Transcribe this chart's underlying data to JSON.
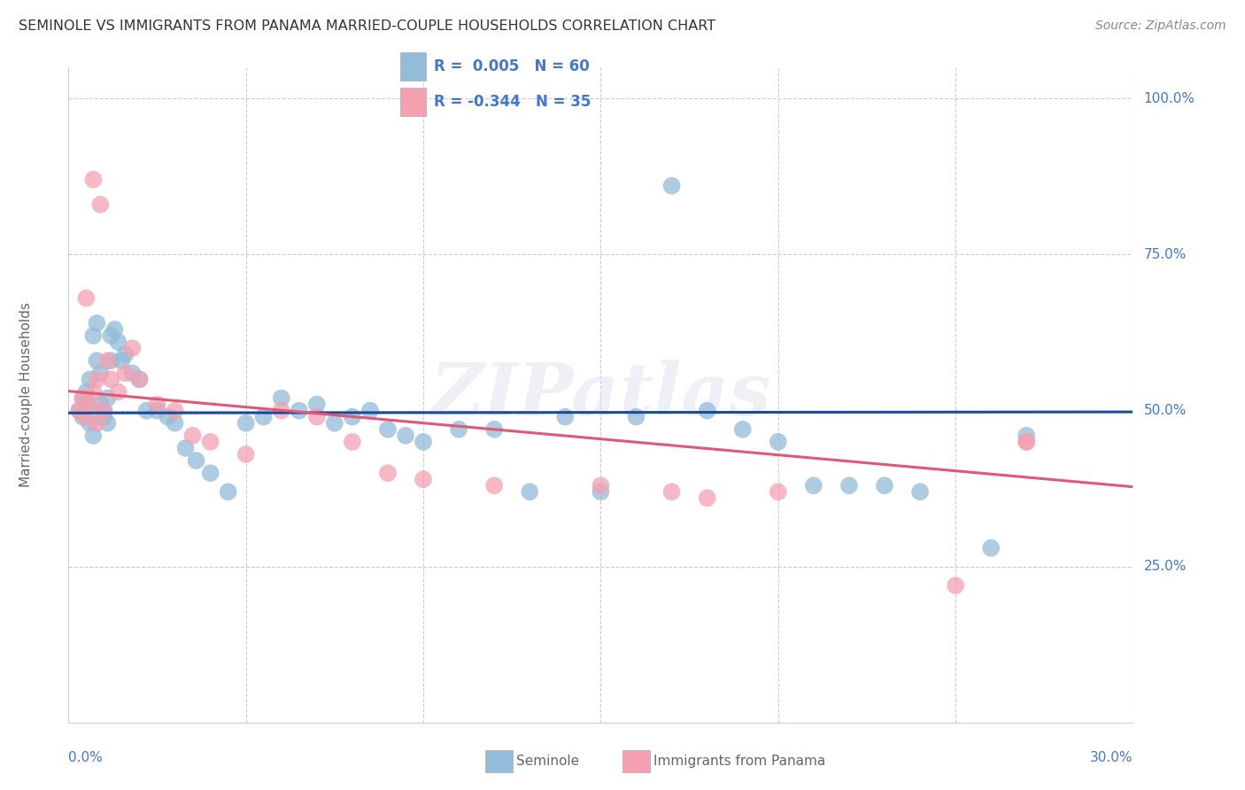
{
  "title": "SEMINOLE VS IMMIGRANTS FROM PANAMA MARRIED-COUPLE HOUSEHOLDS CORRELATION CHART",
  "source": "Source: ZipAtlas.com",
  "ylabel": "Married-couple Households",
  "xmin": 0.0,
  "xmax": 0.3,
  "ymin": 0.0,
  "ymax": 1.05,
  "blue_R": 0.005,
  "blue_N": 60,
  "pink_R": -0.344,
  "pink_N": 35,
  "blue_color": "#92BCD8",
  "pink_color": "#F4A0B0",
  "blue_line_color": "#1A4A9A",
  "pink_line_color": "#E05878",
  "legend_label_blue": "Seminole",
  "legend_label_pink": "Immigrants from Panama",
  "watermark": "ZIPatlas",
  "background_color": "#FFFFFF",
  "grid_color": "#CCCCCC",
  "axis_label_color": "#4477CC",
  "ylabel_color": "#666666",
  "title_color": "#333333",
  "source_color": "#888888",
  "ytick_positions": [
    0.25,
    0.5,
    0.75,
    1.0
  ],
  "ytick_labels": [
    "25.0%",
    "50.0%",
    "75.0%",
    "100.0%"
  ],
  "xtick_positions": [
    0.0,
    0.05,
    0.1,
    0.15,
    0.2,
    0.25,
    0.3
  ],
  "blue_x": [
    0.003,
    0.004,
    0.004,
    0.005,
    0.005,
    0.006,
    0.006,
    0.007,
    0.007,
    0.008,
    0.008,
    0.009,
    0.009,
    0.01,
    0.01,
    0.011,
    0.011,
    0.012,
    0.012,
    0.013,
    0.014,
    0.015,
    0.016,
    0.018,
    0.02,
    0.022,
    0.025,
    0.028,
    0.03,
    0.033,
    0.036,
    0.04,
    0.045,
    0.05,
    0.055,
    0.06,
    0.065,
    0.07,
    0.075,
    0.08,
    0.085,
    0.09,
    0.095,
    0.1,
    0.11,
    0.12,
    0.13,
    0.14,
    0.15,
    0.16,
    0.17,
    0.18,
    0.19,
    0.2,
    0.21,
    0.22,
    0.23,
    0.24,
    0.26,
    0.27
  ],
  "blue_y": [
    0.5,
    0.52,
    0.49,
    0.51,
    0.53,
    0.48,
    0.55,
    0.46,
    0.62,
    0.64,
    0.58,
    0.56,
    0.51,
    0.5,
    0.49,
    0.48,
    0.52,
    0.58,
    0.62,
    0.63,
    0.61,
    0.58,
    0.59,
    0.56,
    0.55,
    0.5,
    0.5,
    0.49,
    0.48,
    0.44,
    0.42,
    0.4,
    0.37,
    0.48,
    0.49,
    0.52,
    0.5,
    0.51,
    0.48,
    0.49,
    0.5,
    0.47,
    0.46,
    0.45,
    0.47,
    0.47,
    0.37,
    0.49,
    0.37,
    0.49,
    0.86,
    0.5,
    0.47,
    0.45,
    0.38,
    0.38,
    0.38,
    0.37,
    0.28,
    0.46
  ],
  "pink_x": [
    0.003,
    0.004,
    0.005,
    0.005,
    0.006,
    0.007,
    0.007,
    0.008,
    0.008,
    0.009,
    0.01,
    0.011,
    0.012,
    0.014,
    0.016,
    0.018,
    0.02,
    0.025,
    0.03,
    0.035,
    0.04,
    0.05,
    0.06,
    0.07,
    0.08,
    0.09,
    0.1,
    0.12,
    0.15,
    0.17,
    0.18,
    0.2,
    0.25,
    0.27,
    0.27
  ],
  "pink_y": [
    0.5,
    0.52,
    0.49,
    0.68,
    0.51,
    0.53,
    0.87,
    0.48,
    0.55,
    0.83,
    0.5,
    0.58,
    0.55,
    0.53,
    0.56,
    0.6,
    0.55,
    0.51,
    0.5,
    0.46,
    0.45,
    0.43,
    0.5,
    0.49,
    0.45,
    0.4,
    0.39,
    0.38,
    0.38,
    0.37,
    0.36,
    0.37,
    0.22,
    0.45,
    0.45
  ]
}
